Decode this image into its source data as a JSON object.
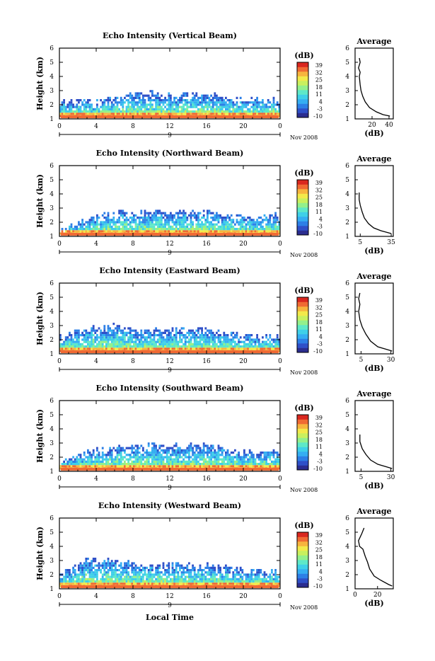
{
  "colors": {
    "scale": [
      "#2b2d8f",
      "#2f50c8",
      "#2d7fe6",
      "#35aef2",
      "#3fd0e8",
      "#5ee8c8",
      "#93f08c",
      "#c9f05e",
      "#f3e94a",
      "#f7b43e",
      "#f06a33",
      "#d9271f"
    ]
  },
  "chart_data": [
    {
      "type": "heatmap",
      "title": "Echo Intensity (Vertical Beam)",
      "ylabel": "Height (km)",
      "xticks": [
        "0",
        "4",
        "8",
        "12",
        "16",
        "20",
        "0"
      ],
      "date_tick": "9",
      "date_label": "Nov 2008",
      "ylim": [
        1,
        6
      ],
      "yticks": [
        "1",
        "2",
        "3",
        "4",
        "5",
        "6"
      ],
      "colorbar": {
        "label": "(dB)",
        "ticks": [
          "39",
          "32",
          "25",
          "18",
          "11",
          "4",
          "-3",
          "-10"
        ]
      },
      "band_profile": {
        "xmax": 24,
        "heights": [
          [
            0,
            2.1
          ],
          [
            4,
            2.2
          ],
          [
            6,
            2.4
          ],
          [
            8,
            2.8
          ],
          [
            12,
            2.6
          ],
          [
            16,
            2.7
          ],
          [
            20,
            2.3
          ],
          [
            24,
            2.2
          ]
        ]
      },
      "avg": {
        "title": "Average",
        "xlabel": "(dB)",
        "xlim": [
          0,
          45
        ],
        "xticks": [
          "20",
          "40"
        ],
        "xtick_values": [
          20,
          40
        ],
        "profile": [
          [
            5,
            5.3
          ],
          [
            6,
            5.0
          ],
          [
            4,
            4.6
          ],
          [
            6,
            4.3
          ],
          [
            5,
            4.0
          ],
          [
            6,
            3.4
          ],
          [
            7,
            3.0
          ],
          [
            9,
            2.6
          ],
          [
            12,
            2.2
          ],
          [
            17,
            1.8
          ],
          [
            25,
            1.5
          ],
          [
            33,
            1.3
          ],
          [
            41,
            1.2
          ]
        ]
      }
    },
    {
      "type": "heatmap",
      "title": "Echo Intensity (Northward Beam)",
      "ylabel": "Height (km)",
      "xticks": [
        "0",
        "4",
        "8",
        "12",
        "16",
        "20",
        "0"
      ],
      "date_tick": "9",
      "date_label": "Nov 2008",
      "ylim": [
        1,
        6
      ],
      "yticks": [
        "1",
        "2",
        "3",
        "4",
        "5",
        "6"
      ],
      "colorbar": {
        "label": "(dB)",
        "ticks": [
          "39",
          "32",
          "25",
          "18",
          "11",
          "4",
          "-3",
          "-10"
        ]
      },
      "band_profile": {
        "xmax": 24,
        "heights": [
          [
            0,
            1.3
          ],
          [
            3,
            2.2
          ],
          [
            6,
            2.6
          ],
          [
            8,
            2.7
          ],
          [
            12,
            2.6
          ],
          [
            16,
            2.7
          ],
          [
            20,
            2.3
          ],
          [
            24,
            2.4
          ]
        ]
      },
      "avg": {
        "title": "Average",
        "xlabel": "(dB)",
        "xlim": [
          0,
          37
        ],
        "xticks": [
          "5",
          "35"
        ],
        "xtick_values": [
          5,
          35
        ],
        "profile": [
          [
            4,
            4.1
          ],
          [
            4,
            3.6
          ],
          [
            5,
            3.2
          ],
          [
            7,
            2.7
          ],
          [
            9,
            2.3
          ],
          [
            13,
            1.9
          ],
          [
            18,
            1.6
          ],
          [
            25,
            1.4
          ],
          [
            35,
            1.2
          ]
        ]
      }
    },
    {
      "type": "heatmap",
      "title": "Echo Intensity (Eastward Beam)",
      "ylabel": "Height (km)",
      "xticks": [
        "0",
        "4",
        "8",
        "12",
        "16",
        "20",
        "0"
      ],
      "date_tick": "9",
      "date_label": "Nov 2008",
      "ylim": [
        1,
        6
      ],
      "yticks": [
        "1",
        "2",
        "3",
        "4",
        "5",
        "6"
      ],
      "colorbar": {
        "label": "(dB)",
        "ticks": [
          "39",
          "32",
          "25",
          "18",
          "11",
          "4",
          "-3",
          "-10"
        ]
      },
      "band_profile": {
        "xmax": 24,
        "heights": [
          [
            0,
            2.1
          ],
          [
            3,
            2.8
          ],
          [
            6,
            2.9
          ],
          [
            8,
            2.7
          ],
          [
            12,
            2.6
          ],
          [
            16,
            2.7
          ],
          [
            20,
            2.2
          ],
          [
            24,
            2.1
          ]
        ]
      },
      "avg": {
        "title": "Average",
        "xlabel": "(dB)",
        "xlim": [
          0,
          32
        ],
        "xticks": [
          "5",
          "30"
        ],
        "xtick_values": [
          5,
          30
        ],
        "profile": [
          [
            4,
            5.3
          ],
          [
            3,
            4.9
          ],
          [
            4,
            4.5
          ],
          [
            3,
            4.0
          ],
          [
            4,
            3.4
          ],
          [
            6,
            2.9
          ],
          [
            9,
            2.4
          ],
          [
            13,
            1.9
          ],
          [
            19,
            1.5
          ],
          [
            27,
            1.3
          ],
          [
            31,
            1.2
          ]
        ]
      }
    },
    {
      "type": "heatmap",
      "title": "Echo Intensity (Southward Beam)",
      "ylabel": "Height (km)",
      "xticks": [
        "0",
        "4",
        "8",
        "12",
        "16",
        "20",
        "0"
      ],
      "date_tick": "9",
      "date_label": "Nov 2008",
      "ylim": [
        1,
        6
      ],
      "yticks": [
        "1",
        "2",
        "3",
        "4",
        "5",
        "6"
      ],
      "colorbar": {
        "label": "(dB)",
        "ticks": [
          "39",
          "32",
          "25",
          "18",
          "11",
          "4",
          "-3",
          "-10"
        ]
      },
      "band_profile": {
        "xmax": 24,
        "heights": [
          [
            0,
            1.5
          ],
          [
            3,
            2.3
          ],
          [
            6,
            2.6
          ],
          [
            8,
            2.8
          ],
          [
            12,
            2.7
          ],
          [
            16,
            2.8
          ],
          [
            20,
            2.3
          ],
          [
            24,
            2.3
          ]
        ]
      },
      "avg": {
        "title": "Average",
        "xlabel": "(dB)",
        "xlim": [
          0,
          32
        ],
        "xticks": [
          "5",
          "30"
        ],
        "xtick_values": [
          5,
          30
        ],
        "profile": [
          [
            4,
            3.6
          ],
          [
            4,
            3.1
          ],
          [
            6,
            2.6
          ],
          [
            9,
            2.2
          ],
          [
            13,
            1.8
          ],
          [
            19,
            1.5
          ],
          [
            27,
            1.3
          ],
          [
            31,
            1.2
          ]
        ]
      }
    },
    {
      "type": "heatmap",
      "title": "Echo Intensity (Westward Beam)",
      "ylabel": "Height (km)",
      "xlabel": "Local Time",
      "xticks": [
        "0",
        "4",
        "8",
        "12",
        "16",
        "20",
        "0"
      ],
      "date_tick": "9",
      "date_label": "Nov 2008",
      "ylim": [
        1,
        6
      ],
      "yticks": [
        "1",
        "2",
        "3",
        "4",
        "5",
        "6"
      ],
      "colorbar": {
        "label": "(dB)",
        "ticks": [
          "39",
          "32",
          "25",
          "18",
          "11",
          "4",
          "-3",
          "-10"
        ]
      },
      "band_profile": {
        "xmax": 24,
        "heights": [
          [
            0,
            2.0
          ],
          [
            3,
            3.0
          ],
          [
            6,
            2.9
          ],
          [
            8,
            2.7
          ],
          [
            12,
            2.7
          ],
          [
            16,
            2.6
          ],
          [
            20,
            2.2
          ],
          [
            24,
            2.2
          ]
        ]
      },
      "avg": {
        "title": "Average",
        "xlabel": "(dB)",
        "xlim": [
          0,
          34
        ],
        "xticks": [
          "0",
          "20"
        ],
        "xtick_values": [
          0,
          20
        ],
        "profile": [
          [
            8,
            5.3
          ],
          [
            6,
            4.9
          ],
          [
            3,
            4.4
          ],
          [
            4,
            4.0
          ],
          [
            7,
            3.8
          ],
          [
            9,
            3.3
          ],
          [
            11,
            2.9
          ],
          [
            13,
            2.4
          ],
          [
            17,
            1.9
          ],
          [
            23,
            1.6
          ],
          [
            30,
            1.3
          ],
          [
            33,
            1.2
          ]
        ]
      }
    }
  ]
}
